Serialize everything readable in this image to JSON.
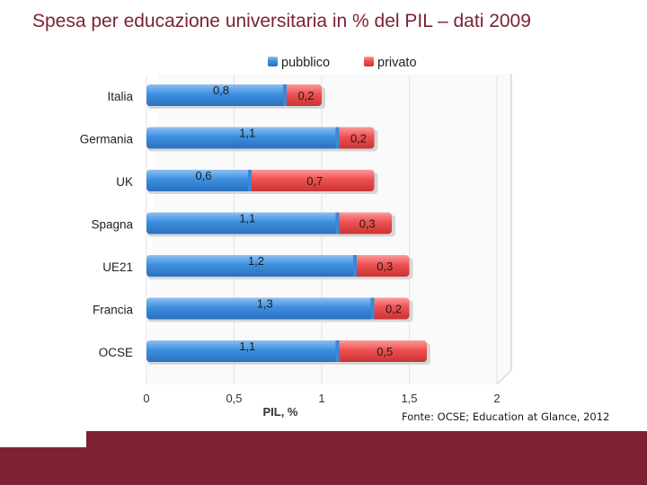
{
  "slide": {
    "title": "Spesa per educazione universitaria in % del PIL – dati 2009",
    "source": "Fonte: OCSE; Education at Glance, 2012"
  },
  "colors": {
    "title": "#7b2234",
    "footer": "#7e2233",
    "pubblico": "#3d8fe0",
    "privato": "#f05050"
  },
  "chart_data": {
    "type": "bar",
    "orientation": "horizontal",
    "stacked": true,
    "categories": [
      "Italia",
      "Germania",
      "UK",
      "Spagna",
      "UE21",
      "Francia",
      "OCSE"
    ],
    "series": [
      {
        "name": "pubblico",
        "values": [
          0.8,
          1.1,
          0.6,
          1.1,
          1.2,
          1.3,
          1.1
        ],
        "labels": [
          "0,8",
          "1,1",
          "0,6",
          "1,1",
          "1,2",
          "1,3",
          "1,1"
        ]
      },
      {
        "name": "privato",
        "values": [
          0.2,
          0.2,
          0.7,
          0.3,
          0.3,
          0.2,
          0.5
        ],
        "labels": [
          "0,2",
          "0,2",
          "0,7",
          "0,3",
          "0,3",
          "0,2",
          "0,5"
        ]
      }
    ],
    "xlim": [
      0,
      2
    ],
    "xticks": [
      0,
      0.5,
      1,
      1.5,
      2
    ],
    "xtick_labels": [
      "0",
      "0,5",
      "1",
      "1,5",
      "2"
    ],
    "xlabel": "PIL, %",
    "ylabel": "",
    "grid": true,
    "legend_position": "top"
  }
}
